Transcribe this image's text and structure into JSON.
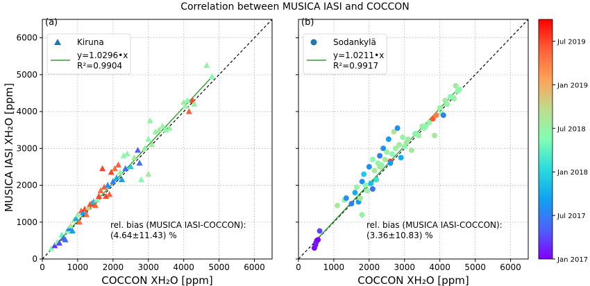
{
  "suptitle": "Correlation between MUSICA IASI and COCCON",
  "y_axis_label": "MUSICA IASI XH₂O [ppm]",
  "chart_data": [
    {
      "type": "scatter",
      "panel_label": "(a)",
      "xlabel": "COCCON XH₂O [ppm]",
      "ylabel": "MUSICA IASI XH₂O [ppm]",
      "xlim": [
        0,
        6500
      ],
      "ylim": [
        0,
        6500
      ],
      "xticks": [
        0,
        1000,
        2000,
        3000,
        4000,
        5000,
        6000
      ],
      "yticks": [
        0,
        1000,
        2000,
        3000,
        4000,
        5000,
        6000
      ],
      "grid": true,
      "legend_position": "top-left",
      "series": [
        {
          "name": "Kiruna",
          "marker": "triangle",
          "points": [
            [
              250,
              280,
              "2018-06"
            ],
            [
              350,
              360,
              "2017-03"
            ],
            [
              420,
              450,
              "2018-05"
            ],
            [
              480,
              430,
              "2017-04"
            ],
            [
              550,
              650,
              "2018-04"
            ],
            [
              600,
              560,
              "2017-05"
            ],
            [
              650,
              520,
              "2017-06"
            ],
            [
              700,
              750,
              "2018-07"
            ],
            [
              750,
              820,
              "2017-08"
            ],
            [
              800,
              900,
              "2018-08"
            ],
            [
              850,
              760,
              "2017-09"
            ],
            [
              900,
              1050,
              "2018-09"
            ],
            [
              950,
              1100,
              "2017-10"
            ],
            [
              1000,
              1200,
              "2018-07"
            ],
            [
              1050,
              1000,
              "2019-05"
            ],
            [
              1100,
              1300,
              "2019-06"
            ],
            [
              1150,
              1250,
              "2017-09"
            ],
            [
              1200,
              1350,
              "2019-07"
            ],
            [
              1250,
              1200,
              "2019-05"
            ],
            [
              1300,
              1400,
              "2018-10"
            ],
            [
              1350,
              1480,
              "2019-06"
            ],
            [
              1400,
              1500,
              "2019-07"
            ],
            [
              1450,
              1550,
              "2017-11"
            ],
            [
              1500,
              1450,
              "2019-06"
            ],
            [
              1550,
              1600,
              "2018-06"
            ],
            [
              1600,
              1700,
              "2019-07"
            ],
            [
              1650,
              1850,
              "2019-05"
            ],
            [
              1700,
              2450,
              "2019-07"
            ],
            [
              1750,
              1950,
              "2019-06"
            ],
            [
              1800,
              1700,
              "2019-07"
            ],
            [
              1850,
              2000,
              "2017-08"
            ],
            [
              1900,
              1750,
              "2019-06"
            ],
            [
              1950,
              2350,
              "2019-07"
            ],
            [
              2000,
              2100,
              "2017-07"
            ],
            [
              2050,
              2450,
              "2019-05"
            ],
            [
              2100,
              2200,
              "2017-10"
            ],
            [
              2150,
              2550,
              "2019-06"
            ],
            [
              2200,
              2350,
              "2018-07"
            ],
            [
              2250,
              2150,
              "2017-09"
            ],
            [
              2300,
              2800,
              "2018-06"
            ],
            [
              2350,
              2450,
              "2017-06"
            ],
            [
              2400,
              2850,
              "2018-07"
            ],
            [
              2500,
              2500,
              "2017-12"
            ],
            [
              2600,
              2750,
              "2018-08"
            ],
            [
              2700,
              2950,
              "2017-05"
            ],
            [
              2750,
              2600,
              "2017-06"
            ],
            [
              2800,
              2150,
              "2018-06"
            ],
            [
              2900,
              3000,
              "2018-07"
            ],
            [
              3000,
              2300,
              "2018-08"
            ],
            [
              3000,
              3250,
              "2018-06"
            ],
            [
              3050,
              3750,
              "2018-07"
            ],
            [
              3100,
              3100,
              "2018-08"
            ],
            [
              3200,
              3450,
              "2018-07"
            ],
            [
              3300,
              3500,
              "2018-08"
            ],
            [
              3400,
              3600,
              "2018-07"
            ],
            [
              3500,
              3500,
              "2018-06"
            ],
            [
              3600,
              3550,
              "2018-07"
            ],
            [
              4000,
              4250,
              "2018-08"
            ],
            [
              4050,
              4150,
              "2018-07"
            ],
            [
              4100,
              4300,
              "2018-06"
            ],
            [
              4150,
              4000,
              "2019-06"
            ],
            [
              4250,
              4300,
              "2019-07"
            ],
            [
              4300,
              4200,
              "2018-07"
            ],
            [
              4650,
              5250,
              "2018-07"
            ],
            [
              4800,
              4950,
              "2018-06"
            ]
          ]
        }
      ],
      "fit": {
        "label": "y=1.0296•x",
        "r2_label": "R²=0.9904",
        "slope": 1.0296
      },
      "annotation": [
        "rel. bias (MUSICA IASI-COCCON):",
        "(4.64±11.43) %"
      ]
    },
    {
      "type": "scatter",
      "panel_label": "(b)",
      "xlabel": "COCCON XH₂O [ppm]",
      "ylabel": "",
      "xlim": [
        0,
        6500
      ],
      "ylim": [
        0,
        6500
      ],
      "xticks": [
        0,
        1000,
        2000,
        3000,
        4000,
        5000,
        6000
      ],
      "yticks": [
        0,
        1000,
        2000,
        3000,
        4000,
        5000,
        6000
      ],
      "grid": true,
      "legend_position": "top-left",
      "series": [
        {
          "name": "Sodankylä",
          "marker": "circle",
          "points": [
            [
              450,
              300,
              "2017-01"
            ],
            [
              480,
              380,
              "2017-02"
            ],
            [
              500,
              450,
              "2017-02"
            ],
            [
              520,
              500,
              "2017-03"
            ],
            [
              550,
              520,
              "2017-01"
            ],
            [
              600,
              760,
              "2017-04"
            ],
            [
              1100,
              1450,
              "2018-08"
            ],
            [
              1300,
              1600,
              "2018-07"
            ],
            [
              1350,
              1650,
              "2017-08"
            ],
            [
              1500,
              1500,
              "2017-07"
            ],
            [
              1600,
              1800,
              "2017-10"
            ],
            [
              1650,
              1950,
              "2018-07"
            ],
            [
              1700,
              1550,
              "2017-09"
            ],
            [
              1750,
              1650,
              "2018-08"
            ],
            [
              1800,
              2100,
              "2017-08"
            ],
            [
              1850,
              2300,
              "2017-12"
            ],
            [
              1900,
              2000,
              "2018-06"
            ],
            [
              1950,
              1850,
              "2018-07"
            ],
            [
              2000,
              2500,
              "2017-08"
            ],
            [
              2050,
              2050,
              "2017-11"
            ],
            [
              2100,
              2700,
              "2018-06"
            ],
            [
              2150,
              2400,
              "2018-08"
            ],
            [
              2200,
              2150,
              "2018-02"
            ],
            [
              2250,
              2600,
              "2018-07"
            ],
            [
              2300,
              2800,
              "2017-07"
            ],
            [
              2350,
              2550,
              "2018-06"
            ],
            [
              2400,
              3000,
              "2017-08"
            ],
            [
              2450,
              2700,
              "2018-08"
            ],
            [
              2500,
              2900,
              "2018-07"
            ],
            [
              2550,
              3250,
              "2017-09"
            ],
            [
              2600,
              2650,
              "2019-07"
            ],
            [
              2650,
              2850,
              "2018-06"
            ],
            [
              2700,
              3450,
              "2018-09"
            ],
            [
              2750,
              3000,
              "2018-07"
            ],
            [
              2800,
              3550,
              "2017-08"
            ],
            [
              2850,
              3100,
              "2018-08"
            ],
            [
              2900,
              2750,
              "2017-10"
            ],
            [
              2950,
              3300,
              "2018-07"
            ],
            [
              3000,
              3050,
              "2018-06"
            ],
            [
              3050,
              3150,
              "2018-08"
            ],
            [
              3100,
              3250,
              "2018-07"
            ],
            [
              3200,
              2950,
              "2018-08"
            ],
            [
              3300,
              3400,
              "2018-06"
            ],
            [
              3400,
              3350,
              "2018-07"
            ],
            [
              3500,
              3600,
              "2018-08"
            ],
            [
              3550,
              3550,
              "2018-07"
            ],
            [
              3600,
              3600,
              "2018-06"
            ],
            [
              3700,
              3700,
              "2018-07"
            ],
            [
              3800,
              3800,
              "2019-06"
            ],
            [
              3850,
              3350,
              "2018-08"
            ],
            [
              3900,
              3900,
              "2019-04"
            ],
            [
              4000,
              4100,
              "2018-07"
            ],
            [
              4050,
              3950,
              "2018-06"
            ],
            [
              4100,
              3900,
              "2017-07"
            ],
            [
              4150,
              4300,
              "2018-08"
            ],
            [
              4200,
              4200,
              "2018-07"
            ],
            [
              4300,
              4400,
              "2018-06"
            ],
            [
              4400,
              4350,
              "2018-07"
            ],
            [
              4450,
              4700,
              "2018-08"
            ],
            [
              4500,
              4550,
              "2018-07"
            ],
            [
              4550,
              4600,
              "2018-06"
            ],
            [
              1800,
              1200,
              "2018-07"
            ],
            [
              2100,
              1900,
              "2017-06"
            ],
            [
              2600,
              2600,
              "2017-09"
            ],
            [
              2300,
              2500,
              "2018-08"
            ]
          ]
        }
      ],
      "fit": {
        "label": "y=1.0211•x",
        "r2_label": "R²=0.9917",
        "slope": 1.0211
      },
      "annotation": [
        "rel. bias (MUSICA IASI-COCCON):",
        "(3.36±10.83) %"
      ]
    }
  ],
  "colorbar": {
    "colormap": "rainbow",
    "range": [
      "2017-01",
      "2019-10"
    ],
    "ticks": [
      {
        "date": "2017-01",
        "label": "Jan 2017"
      },
      {
        "date": "2017-07",
        "label": "Jul 2017"
      },
      {
        "date": "2018-01",
        "label": "Jan 2018"
      },
      {
        "date": "2018-07",
        "label": "Jul 2018"
      },
      {
        "date": "2019-01",
        "label": "Jan 2019"
      },
      {
        "date": "2019-07",
        "label": "Jul 2019"
      }
    ]
  },
  "colors": {
    "fit_line": "#2ca02c",
    "one_to_one": "#000000",
    "grid": "#b0b0b0",
    "legend_triangle": "#1f77b4",
    "legend_circle": "#1f77b4"
  }
}
